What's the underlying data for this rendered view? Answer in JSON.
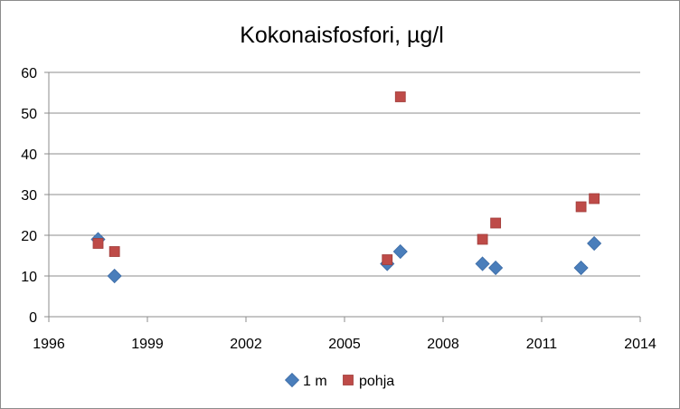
{
  "chart_data": {
    "type": "scatter",
    "title": "Kokonaisfosfori, µg/l",
    "xlabel": "",
    "ylabel": "",
    "xlim": [
      1996,
      2014
    ],
    "ylim": [
      0,
      60
    ],
    "x_ticks": [
      1996,
      1999,
      2002,
      2005,
      2008,
      2011,
      2014
    ],
    "y_ticks": [
      0,
      10,
      20,
      30,
      40,
      50,
      60
    ],
    "grid": "horizontal",
    "legend_position": "bottom",
    "series": [
      {
        "name": "1 m",
        "marker": "diamond",
        "color": "#4a7ebb",
        "points": [
          {
            "x": 1997.5,
            "y": 19
          },
          {
            "x": 1998.0,
            "y": 10
          },
          {
            "x": 2006.3,
            "y": 13
          },
          {
            "x": 2006.7,
            "y": 16
          },
          {
            "x": 2009.2,
            "y": 13
          },
          {
            "x": 2009.6,
            "y": 12
          },
          {
            "x": 2012.2,
            "y": 12
          },
          {
            "x": 2012.6,
            "y": 18
          }
        ]
      },
      {
        "name": "pohja",
        "marker": "square",
        "color": "#be4b48",
        "points": [
          {
            "x": 1997.5,
            "y": 18
          },
          {
            "x": 1998.0,
            "y": 16
          },
          {
            "x": 2006.3,
            "y": 14
          },
          {
            "x": 2006.7,
            "y": 54
          },
          {
            "x": 2009.2,
            "y": 19
          },
          {
            "x": 2009.6,
            "y": 23
          },
          {
            "x": 2012.2,
            "y": 27
          },
          {
            "x": 2012.6,
            "y": 29
          }
        ]
      }
    ]
  }
}
